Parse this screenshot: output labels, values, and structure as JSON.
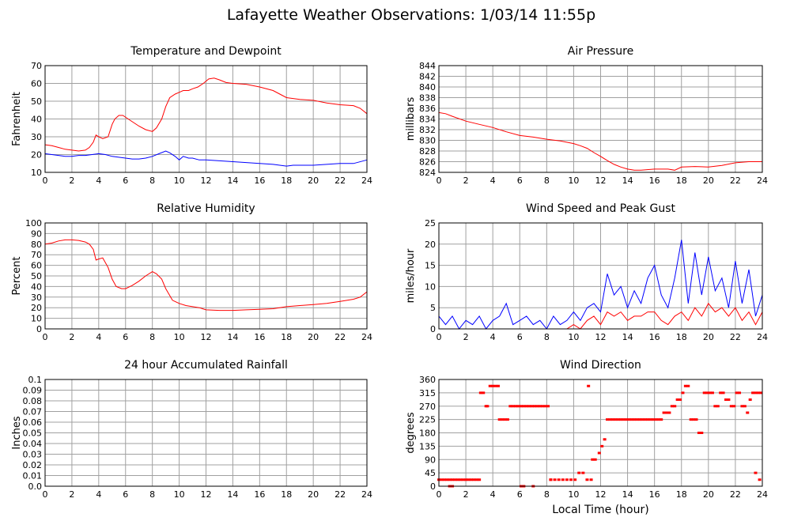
{
  "page": {
    "title": "Lafayette Weather Observations: 1/03/14 11:55p"
  },
  "colors": {
    "primary": "#ff0000",
    "secondary": "#0000ff",
    "grid": "#a0a0a0",
    "frame": "#000000"
  },
  "chart_data": [
    {
      "id": "temp",
      "type": "line",
      "title": "Temperature and Dewpoint",
      "xlabel": "",
      "ylabel": "Fahrenheit",
      "xlim": [
        0,
        24
      ],
      "ylim": [
        10,
        70
      ],
      "xticks": [
        0,
        2,
        4,
        6,
        8,
        10,
        12,
        14,
        16,
        18,
        20,
        22,
        24
      ],
      "yticks": [
        10,
        20,
        30,
        40,
        50,
        60,
        70
      ],
      "grid": true,
      "series": [
        {
          "color": "#ff0000",
          "x": [
            0,
            0.5,
            1,
            1.5,
            2,
            2.5,
            3,
            3.3,
            3.6,
            3.8,
            4,
            4.3,
            4.7,
            5,
            5.2,
            5.5,
            5.8,
            6.2,
            6.6,
            7,
            7.5,
            8,
            8.3,
            8.7,
            9,
            9.3,
            9.7,
            10,
            10.3,
            10.7,
            11,
            11.4,
            11.8,
            12.2,
            12.6,
            13,
            13.5,
            14,
            15,
            16,
            17,
            17.5,
            18,
            18.5,
            19,
            20,
            21,
            22,
            23,
            23.5,
            24
          ],
          "values": [
            25.5,
            25,
            24,
            23,
            22.5,
            22,
            22.5,
            24,
            27,
            31,
            30,
            29,
            30,
            37,
            40,
            42,
            42,
            40,
            38,
            36,
            34,
            33,
            35,
            40,
            47,
            52,
            54,
            55,
            56,
            56,
            57,
            58,
            60,
            62.5,
            63,
            62,
            60.5,
            60,
            59.5,
            58,
            56,
            54,
            52,
            51.5,
            51,
            50.5,
            49,
            48,
            47.5,
            46,
            43
          ]
        },
        {
          "color": "#0000ff",
          "x": [
            0,
            0.5,
            1,
            1.5,
            2,
            2.5,
            3,
            3.5,
            4,
            4.5,
            5,
            5.5,
            6,
            6.5,
            7,
            7.5,
            8,
            8.5,
            9,
            9.3,
            9.7,
            10,
            10.3,
            10.7,
            11,
            11.5,
            12,
            13,
            14,
            15,
            16,
            17,
            18,
            18.5,
            19,
            20,
            21,
            22,
            23,
            24
          ],
          "values": [
            20.5,
            20,
            19.5,
            19,
            19,
            19.5,
            19.5,
            20,
            20.5,
            20,
            19,
            18.5,
            18,
            17.5,
            17.5,
            18,
            19,
            20.5,
            22,
            21,
            19,
            17,
            19,
            18,
            18,
            17,
            17,
            16.5,
            16,
            15.5,
            15,
            14.5,
            13.5,
            14,
            14,
            14,
            14.5,
            15,
            15,
            17
          ]
        }
      ]
    },
    {
      "id": "pressure",
      "type": "line",
      "title": "Air Pressure",
      "xlabel": "",
      "ylabel": "millibars",
      "xlim": [
        0,
        24
      ],
      "ylim": [
        824,
        844
      ],
      "xticks": [
        0,
        2,
        4,
        6,
        8,
        10,
        12,
        14,
        16,
        18,
        20,
        22,
        24
      ],
      "yticks": [
        824,
        826,
        828,
        830,
        832,
        834,
        836,
        838,
        840,
        842,
        844
      ],
      "grid": true,
      "series": [
        {
          "color": "#ff0000",
          "x": [
            0,
            0.5,
            1,
            2,
            3,
            4,
            5,
            6,
            7,
            8,
            9,
            10,
            10.5,
            11,
            11.5,
            12,
            12.5,
            13,
            13.5,
            14,
            14.5,
            15,
            16,
            17,
            17.5,
            18,
            19,
            20,
            21,
            22,
            23,
            24
          ],
          "values": [
            835.2,
            835,
            834.5,
            833.6,
            833,
            832.4,
            831.6,
            830.9,
            830.6,
            830.2,
            829.9,
            829.4,
            829,
            828.5,
            827.7,
            827,
            826.2,
            825.5,
            825,
            824.6,
            824.4,
            824.4,
            824.6,
            824.6,
            824.4,
            825,
            825.1,
            825,
            825.3,
            825.8,
            826,
            826
          ]
        }
      ]
    },
    {
      "id": "humidity",
      "type": "line",
      "title": "Relative Humidity",
      "xlabel": "",
      "ylabel": "Percent",
      "xlim": [
        0,
        24
      ],
      "ylim": [
        0,
        100
      ],
      "xticks": [
        0,
        2,
        4,
        6,
        8,
        10,
        12,
        14,
        16,
        18,
        20,
        22,
        24
      ],
      "yticks": [
        0,
        10,
        20,
        30,
        40,
        50,
        60,
        70,
        80,
        90,
        100
      ],
      "grid": true,
      "series": [
        {
          "color": "#ff0000",
          "x": [
            0,
            0.5,
            1,
            1.5,
            2,
            2.5,
            3,
            3.3,
            3.6,
            3.8,
            4,
            4.3,
            4.7,
            5,
            5.3,
            5.7,
            6,
            6.5,
            7,
            7.5,
            8,
            8.3,
            8.7,
            9,
            9.5,
            10,
            10.5,
            11,
            11.5,
            12,
            13,
            14,
            15,
            16,
            17,
            18,
            19,
            20,
            21,
            22,
            23,
            23.5,
            24
          ],
          "values": [
            80,
            81,
            83,
            84,
            84,
            83.5,
            82,
            80,
            75,
            65,
            66,
            67,
            58,
            47,
            40,
            38,
            38,
            41,
            45,
            50,
            54,
            52,
            47,
            38,
            27,
            24,
            22,
            21,
            20,
            18,
            17.5,
            17.5,
            18,
            18.5,
            19,
            21,
            22,
            23,
            24,
            26,
            28,
            30,
            35
          ]
        }
      ]
    },
    {
      "id": "wind",
      "type": "line",
      "title": "Wind Speed and Peak Gust",
      "xlabel": "",
      "ylabel": "miles/hour",
      "xlim": [
        0,
        24
      ],
      "ylim": [
        0,
        25
      ],
      "xticks": [
        0,
        2,
        4,
        6,
        8,
        10,
        12,
        14,
        16,
        18,
        20,
        22,
        24
      ],
      "yticks": [
        0,
        5,
        10,
        15,
        20,
        25
      ],
      "grid": true,
      "series": [
        {
          "color": "#0000ff",
          "x": [
            0,
            0.5,
            1,
            1.5,
            2,
            2.5,
            3,
            3.5,
            4,
            4.5,
            5,
            5.5,
            6,
            6.5,
            7,
            7.5,
            8,
            8.5,
            9,
            9.5,
            10,
            10.5,
            11,
            11.5,
            12,
            12.5,
            13,
            13.5,
            14,
            14.5,
            15,
            15.5,
            16,
            16.5,
            17,
            17.5,
            18,
            18.5,
            19,
            19.5,
            20,
            20.5,
            21,
            21.5,
            22,
            22.5,
            23,
            23.5,
            24
          ],
          "values": [
            3,
            1,
            3,
            0,
            2,
            1,
            3,
            0,
            2,
            3,
            6,
            1,
            2,
            3,
            1,
            2,
            0,
            3,
            1,
            2,
            4,
            2,
            5,
            6,
            4,
            13,
            8,
            10,
            5,
            9,
            6,
            12,
            15,
            8,
            5,
            12,
            21,
            6,
            18,
            8,
            17,
            9,
            12,
            5,
            16,
            6,
            14,
            3,
            8
          ]
        },
        {
          "color": "#ff0000",
          "x": [
            0,
            0.5,
            1,
            1.5,
            2,
            2.5,
            3,
            3.5,
            4,
            4.5,
            5,
            5.5,
            6,
            6.5,
            7,
            7.5,
            8,
            8.5,
            9,
            9.5,
            10,
            10.5,
            11,
            11.5,
            12,
            12.5,
            13,
            13.5,
            14,
            14.5,
            15,
            15.5,
            16,
            16.5,
            17,
            17.5,
            18,
            18.5,
            19,
            19.5,
            20,
            20.5,
            21,
            21.5,
            22,
            22.5,
            23,
            23.5,
            24
          ],
          "values": [
            0,
            0,
            0,
            0,
            0,
            0,
            0,
            0,
            0,
            0,
            0,
            0,
            0,
            0,
            0,
            0,
            0,
            0,
            0,
            0,
            1,
            0,
            2,
            3,
            1,
            4,
            3,
            4,
            2,
            3,
            3,
            4,
            4,
            2,
            1,
            3,
            4,
            2,
            5,
            3,
            6,
            4,
            5,
            3,
            5,
            2,
            4,
            1,
            4
          ]
        }
      ]
    },
    {
      "id": "rain",
      "type": "line",
      "title": "24 hour Accumulated Rainfall",
      "xlabel": "",
      "ylabel": "Inches",
      "xlim": [
        0,
        24
      ],
      "ylim": [
        0,
        0.1
      ],
      "xticks": [
        0,
        2,
        4,
        6,
        8,
        10,
        12,
        14,
        16,
        18,
        20,
        22,
        24
      ],
      "yticks": [
        0.0,
        0.01,
        0.02,
        0.03,
        0.04,
        0.05,
        0.06,
        0.07,
        0.08,
        0.09,
        0.1
      ],
      "ytick_labels": [
        "0.0",
        "0.01",
        "0.02",
        "0.03",
        "0.04",
        "0.05",
        "0.06",
        "0.07",
        "0.08",
        "0.09",
        "0.1"
      ],
      "grid": true,
      "series": [
        {
          "color": "#ff0000",
          "x": [
            0,
            24
          ],
          "values": [
            0,
            0
          ]
        }
      ]
    },
    {
      "id": "direction",
      "type": "scatter",
      "title": "Wind Direction",
      "xlabel": "Local Time (hour)",
      "ylabel": "degrees",
      "xlim": [
        0,
        24
      ],
      "ylim": [
        0,
        360
      ],
      "xticks": [
        0,
        2,
        4,
        6,
        8,
        10,
        12,
        14,
        16,
        18,
        20,
        22,
        24
      ],
      "yticks": [
        0,
        45,
        90,
        135,
        180,
        225,
        270,
        315,
        360
      ],
      "grid": true,
      "series": [
        {
          "color": "#ff0000",
          "x": [
            0.0,
            0.2,
            0.4,
            0.6,
            0.8,
            1.0,
            1.2,
            1.4,
            1.6,
            1.8,
            2.0,
            2.2,
            2.4,
            2.6,
            2.8,
            3.0,
            0.8,
            1.0,
            3.1,
            3.3,
            3.5,
            3.6,
            3.8,
            4.0,
            4.2,
            4.4,
            4.5,
            4.7,
            4.9,
            5.1,
            5.3,
            5.5,
            5.7,
            5.9,
            6.1,
            6.3,
            6.5,
            6.7,
            6.9,
            7.1,
            7.3,
            7.5,
            7.7,
            7.9,
            8.1,
            8.3,
            6.1,
            6.3,
            7.0,
            8.3,
            8.6,
            8.9,
            9.2,
            9.5,
            9.8,
            10.1,
            10.4,
            10.7,
            11.0,
            11.3,
            11.1,
            11.4,
            11.6,
            11.9,
            12.1,
            12.3,
            12.5,
            12.7,
            12.9,
            13.1,
            13.3,
            13.5,
            13.7,
            13.9,
            14.1,
            14.3,
            14.5,
            14.7,
            14.9,
            15.1,
            15.3,
            15.5,
            15.7,
            15.9,
            16.1,
            16.3,
            16.5,
            16.7,
            16.9,
            17.1,
            17.3,
            17.5,
            17.7,
            17.9,
            18.1,
            18.3,
            18.5,
            18.7,
            18.9,
            19.1,
            19.3,
            19.5,
            19.7,
            19.9,
            20.1,
            20.3,
            20.5,
            20.7,
            20.9,
            21.1,
            21.3,
            21.5,
            21.7,
            21.9,
            22.1,
            22.3,
            22.5,
            22.7,
            22.9,
            23.1,
            23.3,
            23.5,
            23.7,
            23.9,
            23.5,
            23.8
          ],
          "values": [
            22,
            22,
            22,
            22,
            22,
            22,
            22,
            22,
            22,
            22,
            22,
            22,
            22,
            22,
            22,
            22,
            0,
            0,
            315,
            315,
            270,
            270,
            338,
            338,
            338,
            338,
            225,
            225,
            225,
            225,
            270,
            270,
            270,
            270,
            270,
            270,
            270,
            270,
            270,
            270,
            270,
            270,
            270,
            270,
            270,
            22,
            0,
            0,
            0,
            22,
            22,
            22,
            22,
            22,
            22,
            22,
            45,
            45,
            22,
            22,
            338,
            90,
            90,
            112,
            135,
            158,
            225,
            225,
            225,
            225,
            225,
            225,
            225,
            225,
            225,
            225,
            225,
            225,
            225,
            225,
            225,
            225,
            225,
            225,
            225,
            225,
            225,
            248,
            248,
            248,
            270,
            270,
            292,
            292,
            315,
            338,
            338,
            225,
            225,
            225,
            180,
            180,
            315,
            315,
            315,
            315,
            270,
            270,
            315,
            315,
            292,
            292,
            270,
            270,
            315,
            315,
            270,
            270,
            248,
            292,
            315,
            315,
            315,
            315,
            45,
            22
          ]
        }
      ]
    }
  ]
}
